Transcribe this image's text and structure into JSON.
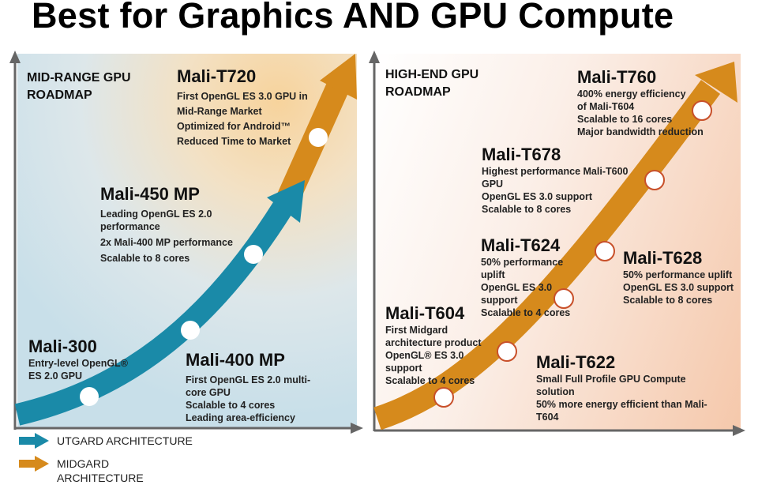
{
  "title": "Best for Graphics AND GPU Compute",
  "left_panel": {
    "heading": [
      "MID-RANGE GPU",
      "ROADMAP"
    ],
    "products": [
      {
        "name": "Mali-300",
        "lines": [
          "Entry-level OpenGL®",
          "ES 2.0  GPU"
        ]
      },
      {
        "name": "Mali-400 MP",
        "lines": [
          "First OpenGL ES 2.0 multi-",
          "core GPU",
          "Scalable to 4 cores",
          "Leading area-efficiency"
        ]
      },
      {
        "name": "Mali-450 MP",
        "lines": [
          "Leading OpenGL ES 2.0",
          "performance",
          "2x Mali-400 MP performance",
          "Scalable to 8 cores"
        ]
      },
      {
        "name": "Mali-T720",
        "lines": [
          "First OpenGL ES 3.0 GPU in",
          "Mid-Range Market",
          "Optimized for Android™",
          "Reduced Time to Market"
        ]
      }
    ]
  },
  "right_panel": {
    "heading": [
      "HIGH-END GPU",
      "ROADMAP"
    ],
    "products": [
      {
        "name": "Mali-T604",
        "lines": [
          "First  Midgard",
          "architecture product",
          "OpenGL® ES 3.0",
          "support",
          "Scalable to 4 cores"
        ]
      },
      {
        "name": "Mali-T622",
        "lines": [
          "Small Full Profile GPU Compute",
          "solution",
          "50% more energy efficient than Mali-",
          "T604"
        ]
      },
      {
        "name": "Mali-T624",
        "lines": [
          "50% performance",
          "uplift",
          "OpenGL ES 3.0",
          "support",
          "Scalable to 4 cores"
        ]
      },
      {
        "name": "Mali-T628",
        "lines": [
          "50% performance uplift",
          "OpenGL ES 3.0 support",
          "Scalable to 8 cores"
        ]
      },
      {
        "name": "Mali-T678",
        "lines": [
          "Highest performance Mali-T600",
          "GPU",
          "OpenGL ES 3.0 support",
          "Scalable to 8 cores"
        ]
      },
      {
        "name": "Mali-T760",
        "lines": [
          "400% energy efficiency",
          "of Mali-T604",
          "Scalable to 16 cores",
          "Major bandwidth reduction"
        ]
      }
    ]
  },
  "legend": [
    {
      "label": "UTGARD ARCHITECTURE",
      "color": "#1a8aa8"
    },
    {
      "label": "MIDGARD\nARCHITECTURE",
      "color": "#d68a1c"
    }
  ],
  "colors": {
    "utgard": "#1a8aa8",
    "midgard": "#d68a1c",
    "axis": "#666666"
  }
}
